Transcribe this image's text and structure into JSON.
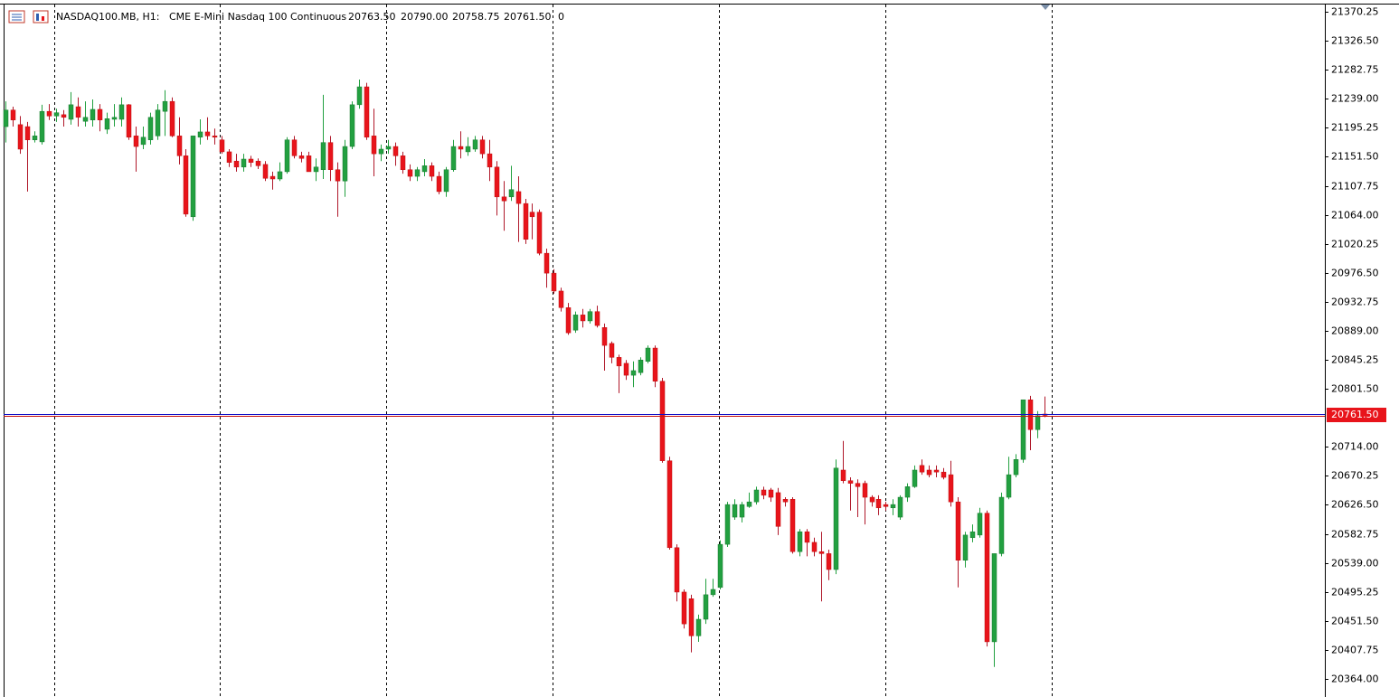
{
  "chart_data": {
    "type": "candlestick",
    "symbol": "NASDAQ100.MB, H1:",
    "description": "CME E-Mini Nasdaq 100 Continuous",
    "last_bar_labels": [
      {
        "value": 20763.5,
        "label": "20763.50"
      },
      {
        "value": 20790,
        "label": "20790.00"
      },
      {
        "value": 20758.75,
        "label": "20758.75"
      },
      {
        "value": 20761.5,
        "label": "20761.50"
      }
    ],
    "volume": 0,
    "current_price": {
      "value": 20761.5,
      "label": "20761.50"
    },
    "up_color": "#22a040",
    "down_color": "#e8141b",
    "wick_up_color": "#22a040",
    "wick_down_color": "#b0182a",
    "ylim": [
      20336.75,
      21382.5
    ],
    "yticks": [
      21370.25,
      {
        "value": 21326.5,
        "label": "21326.50"
      },
      21282.75,
      {
        "value": 21239,
        "label": "21239.00"
      },
      21195.25,
      {
        "value": 21151.5,
        "label": "21151.50"
      },
      21107.75,
      {
        "value": 21064,
        "label": "21064.00"
      },
      21020.25,
      {
        "value": 20976.5,
        "label": "20976.50"
      },
      20932.75,
      {
        "value": 20889,
        "label": "20889.00"
      },
      20845.25,
      {
        "value": 20801.5,
        "label": "20801.50"
      },
      {
        "value": 20714,
        "label": "20714.00"
      },
      20670.25,
      {
        "value": 20626.5,
        "label": "20626.50"
      },
      20582.75,
      {
        "value": 20539,
        "label": "20539.00"
      },
      20495.25,
      {
        "value": 20451.5,
        "label": "20451.50"
      },
      20407.75,
      {
        "value": 20364,
        "label": "20364.00"
      }
    ],
    "ohlc": [
      [
        21197,
        21235,
        21173,
        21222
      ],
      [
        21222,
        21227,
        21197,
        21207
      ],
      [
        21200,
        21213,
        21156,
        21163
      ],
      [
        21197,
        21204,
        21099,
        21177
      ],
      [
        21177,
        21190,
        21173,
        21183
      ],
      [
        21174,
        21230,
        21170,
        21220
      ],
      [
        21220,
        21231,
        21207,
        21213
      ],
      [
        21213,
        21224,
        21204,
        21218
      ],
      [
        21215,
        21222,
        21197,
        21211
      ],
      [
        21208,
        21249,
        21200,
        21230
      ],
      [
        21227,
        21241,
        21197,
        21211
      ],
      [
        21205,
        21235,
        21197,
        21211
      ],
      [
        21207,
        21238,
        21197,
        21223
      ],
      [
        21223,
        21231,
        21190,
        21207
      ],
      [
        21193,
        21218,
        21186,
        21209
      ],
      [
        21208,
        21231,
        21197,
        21211
      ],
      [
        21208,
        21241,
        21197,
        21230
      ],
      [
        21230,
        21231,
        21177,
        21181
      ],
      [
        21183,
        21197,
        21129,
        21167
      ],
      [
        21170,
        21197,
        21163,
        21181
      ],
      [
        21177,
        21218,
        21170,
        21211
      ],
      [
        21183,
        21231,
        21177,
        21222
      ],
      [
        21220,
        21252,
        21183,
        21235
      ],
      [
        21235,
        21241,
        21181,
        21183
      ],
      [
        21183,
        21211,
        21140,
        21153
      ],
      [
        21153,
        21163,
        21061,
        21065
      ],
      [
        21061,
        21183,
        21055,
        21183
      ],
      [
        21181,
        21208,
        21170,
        21189
      ],
      [
        21189,
        21211,
        21177,
        21183
      ],
      [
        21183,
        21194,
        21170,
        21181
      ],
      [
        21177,
        21183,
        21156,
        21159
      ],
      [
        21159,
        21163,
        21136,
        21143
      ],
      [
        21145,
        21156,
        21129,
        21136
      ],
      [
        21136,
        21156,
        21129,
        21148
      ],
      [
        21148,
        21153,
        21136,
        21143
      ],
      [
        21145,
        21149,
        21133,
        21138
      ],
      [
        21140,
        21145,
        21115,
        21119
      ],
      [
        21122,
        21129,
        21102,
        21118
      ],
      [
        21118,
        21143,
        21115,
        21129
      ],
      [
        21129,
        21181,
        21126,
        21177
      ],
      [
        21177,
        21183,
        21149,
        21153
      ],
      [
        21153,
        21159,
        21143,
        21149
      ],
      [
        21153,
        21159,
        21129,
        21129
      ],
      [
        21129,
        21149,
        21115,
        21136
      ],
      [
        21132,
        21245,
        21118,
        21173
      ],
      [
        21173,
        21183,
        21115,
        21132
      ],
      [
        21132,
        21143,
        21061,
        21115
      ],
      [
        21115,
        21177,
        21091,
        21167
      ],
      [
        21167,
        21235,
        21163,
        21230
      ],
      [
        21230,
        21268,
        21224,
        21257
      ],
      [
        21257,
        21263,
        21177,
        21181
      ],
      [
        21183,
        21224,
        21122,
        21156
      ],
      [
        21156,
        21170,
        21145,
        21163
      ],
      [
        21163,
        21177,
        21156,
        21167
      ],
      [
        21167,
        21173,
        21138,
        21153
      ],
      [
        21153,
        21159,
        21126,
        21132
      ],
      [
        21132,
        21140,
        21115,
        21122
      ],
      [
        21122,
        21136,
        21115,
        21132
      ],
      [
        21129,
        21148,
        21122,
        21138
      ],
      [
        21138,
        21143,
        21115,
        21122
      ],
      [
        21122,
        21129,
        21095,
        21099
      ],
      [
        21099,
        21136,
        21091,
        21132
      ],
      [
        21132,
        21177,
        21129,
        21167
      ],
      [
        21167,
        21190,
        21149,
        21163
      ],
      [
        21159,
        21181,
        21153,
        21167
      ],
      [
        21163,
        21183,
        21159,
        21177
      ],
      [
        21177,
        21183,
        21149,
        21156
      ],
      [
        21156,
        21177,
        21115,
        21136
      ],
      [
        21136,
        21145,
        21063,
        21091
      ],
      [
        21091,
        21115,
        21040,
        21085
      ],
      [
        21091,
        21138,
        21085,
        21102
      ],
      [
        21099,
        21122,
        21023,
        21081
      ],
      [
        21081,
        21088,
        21020,
        21027
      ],
      [
        21068,
        21081,
        21027,
        21061
      ],
      [
        21068,
        21072,
        21003,
        21006
      ],
      [
        21006,
        21013,
        20954,
        20976
      ],
      [
        20976,
        20982,
        20945,
        20949
      ],
      [
        20949,
        20954,
        20918,
        20924
      ],
      [
        20924,
        20931,
        20883,
        20886
      ],
      [
        20890,
        20918,
        20886,
        20913
      ],
      [
        20913,
        20922,
        20894,
        20904
      ],
      [
        20904,
        20922,
        20900,
        20918
      ],
      [
        20918,
        20927,
        20894,
        20897
      ],
      [
        20894,
        20900,
        20829,
        20867
      ],
      [
        20870,
        20873,
        20840,
        20849
      ],
      [
        20849,
        20853,
        20795,
        20836
      ],
      [
        20840,
        20845,
        20815,
        20822
      ],
      [
        20822,
        20843,
        20804,
        20829
      ],
      [
        20826,
        20849,
        20822,
        20845
      ],
      [
        20843,
        20867,
        20840,
        20863
      ],
      [
        20863,
        20867,
        20804,
        20813
      ],
      [
        20813,
        20818,
        20690,
        20693
      ],
      [
        20693,
        20699,
        20559,
        20562
      ],
      [
        20562,
        20567,
        20481,
        20495
      ],
      [
        20495,
        20499,
        20440,
        20447
      ],
      [
        20485,
        20491,
        20404,
        20429
      ],
      [
        20429,
        20461,
        20420,
        20454
      ],
      [
        20454,
        20515,
        20447,
        20491
      ],
      [
        20491,
        20515,
        20488,
        20499
      ],
      [
        20502,
        20573,
        20499,
        20567
      ],
      [
        20567,
        20631,
        20563,
        20627
      ],
      [
        20608,
        20635,
        20604,
        20627
      ],
      [
        20608,
        20631,
        20600,
        20627
      ],
      [
        20624,
        20645,
        20622,
        20631
      ],
      [
        20631,
        20654,
        20627,
        20649
      ],
      [
        20649,
        20654,
        20635,
        20641
      ],
      [
        20649,
        20652,
        20631,
        20638
      ],
      [
        20645,
        20652,
        20581,
        20594
      ],
      [
        20635,
        20638,
        20624,
        20631
      ],
      [
        20635,
        20638,
        20553,
        20556
      ],
      [
        20556,
        20590,
        20549,
        20586
      ],
      [
        20586,
        20590,
        20549,
        20570
      ],
      [
        20570,
        20577,
        20549,
        20556
      ],
      [
        20556,
        20586,
        20481,
        20553
      ],
      [
        20553,
        20559,
        20513,
        20529
      ],
      [
        20529,
        20695,
        20522,
        20682
      ],
      [
        20679,
        20723,
        20659,
        20663
      ],
      [
        20663,
        20668,
        20618,
        20659
      ],
      [
        20659,
        20665,
        20608,
        20654
      ],
      [
        20659,
        20663,
        20597,
        20638
      ],
      [
        20638,
        20641,
        20624,
        20631
      ],
      [
        20635,
        20641,
        20611,
        20622
      ],
      [
        20627,
        20631,
        20618,
        20624
      ],
      [
        20622,
        20635,
        20611,
        20627
      ],
      [
        20608,
        20641,
        20604,
        20638
      ],
      [
        20638,
        20659,
        20631,
        20654
      ],
      [
        20654,
        20686,
        20652,
        20679
      ],
      [
        20686,
        20695,
        20672,
        20676
      ],
      [
        20679,
        20686,
        20668,
        20672
      ],
      [
        20679,
        20686,
        20668,
        20676
      ],
      [
        20676,
        20682,
        20665,
        20668
      ],
      [
        20672,
        20693,
        20624,
        20631
      ],
      [
        20631,
        20638,
        20502,
        20543
      ],
      [
        20543,
        20586,
        20532,
        20581
      ],
      [
        20577,
        20597,
        20570,
        20586
      ],
      [
        20581,
        20622,
        20577,
        20614
      ],
      [
        20614,
        20618,
        20413,
        20420
      ],
      [
        20420,
        20553,
        20382,
        20553
      ],
      [
        20553,
        20645,
        20549,
        20638
      ],
      [
        20638,
        20699,
        20635,
        20672
      ],
      [
        20672,
        20703,
        20668,
        20695
      ],
      [
        20695,
        20785,
        20690,
        20785
      ],
      [
        20785,
        20791,
        20709,
        20740
      ],
      [
        20740,
        20768,
        20727,
        20761
      ],
      [
        20763.5,
        20790,
        20758.75,
        20761.5
      ]
    ]
  }
}
